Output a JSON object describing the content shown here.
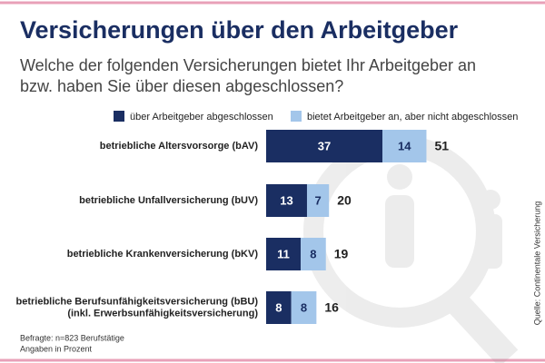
{
  "chart_data": {
    "type": "stacked-bar-horizontal",
    "title": "Versicherungen über den Arbeitgeber",
    "subtitle": [
      "Welche der folgenden Versicherungen bietet Ihr Arbeitgeber an",
      "bzw. haben Sie über diesen abgeschlossen?"
    ],
    "categories": [
      [
        "betriebliche Altersvorsorge (bAV)"
      ],
      [
        "betriebliche Unfallversicherung (bUV)"
      ],
      [
        "betriebliche Krankenversicherung (bKV)"
      ],
      [
        "betriebliche Berufsunfähigkeitsversicherung (bBU)",
        "(inkl. Erwerbsunfähigkeitsversicherung)"
      ]
    ],
    "series": [
      {
        "name": "über Arbeitgeber abgeschlossen",
        "color": "#1a2e62",
        "values": [
          37,
          13,
          11,
          8
        ]
      },
      {
        "name": "bietet Arbeitgeber an, aber nicht abgeschlossen",
        "color": "#a3c6ea",
        "values": [
          14,
          7,
          8,
          8
        ]
      }
    ],
    "totals": [
      51,
      20,
      19,
      16
    ],
    "notes": [
      "Befragte: n=823 Berufstätige",
      "Angaben in Prozent"
    ],
    "source": "Quelle: Continentale Versicherung"
  }
}
